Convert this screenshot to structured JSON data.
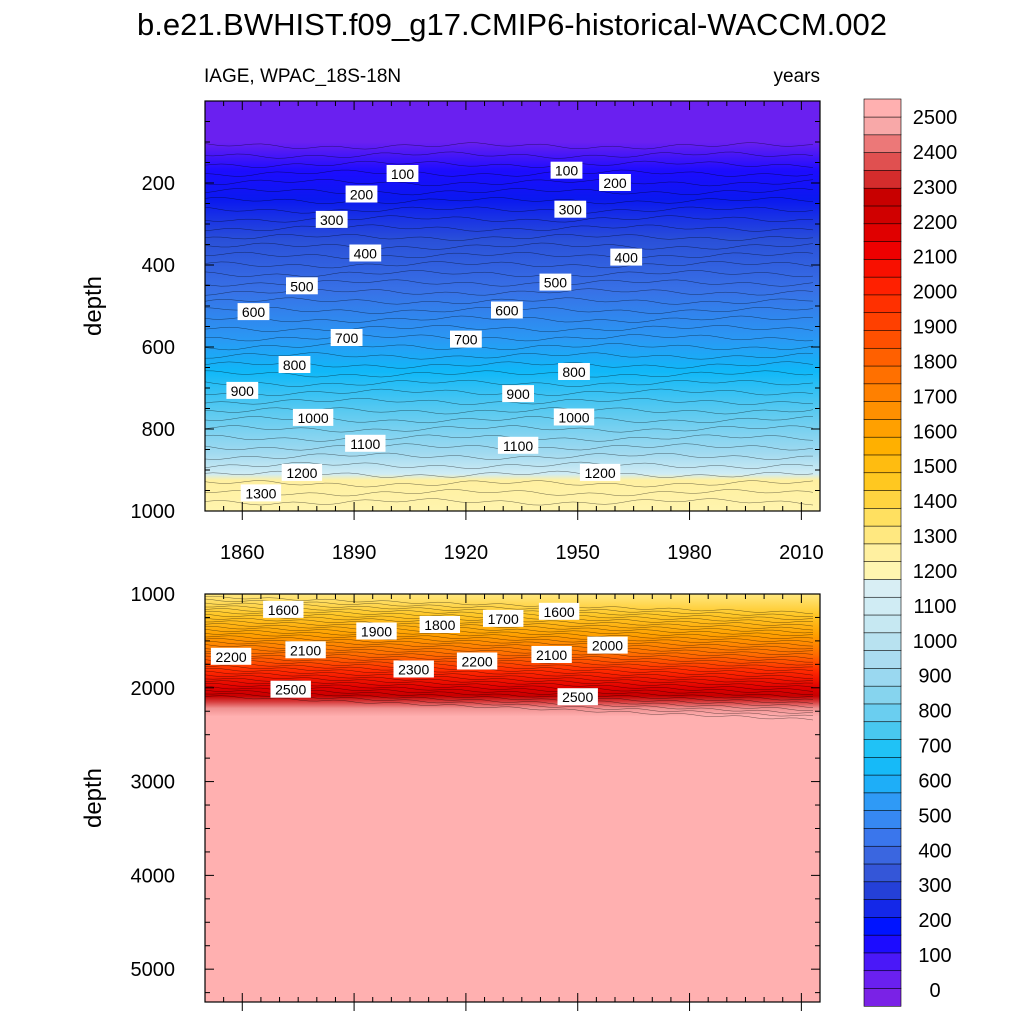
{
  "chart_data": {
    "type": "contour",
    "title": "b.e21.BWHIST.f09_g17.CMIP6-historical-WACCM.002",
    "variable_label": "IAGE, WPAC_18S-18N",
    "units_label": "years",
    "xlim": [
      1850,
      2015
    ],
    "x_ticks": [
      1860,
      1890,
      1920,
      1950,
      1980,
      2010
    ],
    "x_tick_labels": [
      "1860",
      "1890",
      "1920",
      "1950",
      "1980",
      "2010"
    ],
    "panels": [
      {
        "name": "upper",
        "ylabel": "depth",
        "ylim": [
          0,
          1000
        ],
        "y_ticks": [
          200,
          400,
          600,
          800,
          1000
        ],
        "y_tick_labels": [
          "200",
          "400",
          "600",
          "800",
          "1000"
        ],
        "contour_labels": [
          {
            "text": "100",
            "x": 1903,
            "y": 178
          },
          {
            "text": "100",
            "x": 1947,
            "y": 170
          },
          {
            "text": "200",
            "x": 1892,
            "y": 228
          },
          {
            "text": "200",
            "x": 1960,
            "y": 200
          },
          {
            "text": "300",
            "x": 1884,
            "y": 290
          },
          {
            "text": "300",
            "x": 1948,
            "y": 265
          },
          {
            "text": "400",
            "x": 1893,
            "y": 372
          },
          {
            "text": "400",
            "x": 1963,
            "y": 382
          },
          {
            "text": "500",
            "x": 1876,
            "y": 452
          },
          {
            "text": "500",
            "x": 1944,
            "y": 443
          },
          {
            "text": "600",
            "x": 1863,
            "y": 515
          },
          {
            "text": "600",
            "x": 1931,
            "y": 511
          },
          {
            "text": "700",
            "x": 1888,
            "y": 578
          },
          {
            "text": "700",
            "x": 1920,
            "y": 582
          },
          {
            "text": "800",
            "x": 1874,
            "y": 644
          },
          {
            "text": "800",
            "x": 1949,
            "y": 661
          },
          {
            "text": "900",
            "x": 1860,
            "y": 707
          },
          {
            "text": "900",
            "x": 1934,
            "y": 715
          },
          {
            "text": "1000",
            "x": 1879,
            "y": 773
          },
          {
            "text": "1000",
            "x": 1949,
            "y": 772
          },
          {
            "text": "1100",
            "x": 1893,
            "y": 836
          },
          {
            "text": "1100",
            "x": 1934,
            "y": 841
          },
          {
            "text": "1200",
            "x": 1876,
            "y": 907
          },
          {
            "text": "1200",
            "x": 1956,
            "y": 907
          },
          {
            "text": "1300",
            "x": 1865,
            "y": 957
          }
        ]
      },
      {
        "name": "lower",
        "ylabel": "depth",
        "ylim": [
          1000,
          5350
        ],
        "y_ticks": [
          1000,
          2000,
          3000,
          4000,
          5000
        ],
        "y_tick_labels": [
          "1000",
          "2000",
          "3000",
          "4000",
          "5000"
        ],
        "contour_labels": [
          {
            "text": "1600",
            "x": 1871,
            "y": 1170
          },
          {
            "text": "1600",
            "x": 1945,
            "y": 1190
          },
          {
            "text": "1700",
            "x": 1930,
            "y": 1265
          },
          {
            "text": "1800",
            "x": 1913,
            "y": 1330
          },
          {
            "text": "1900",
            "x": 1896,
            "y": 1400
          },
          {
            "text": "2000",
            "x": 1958,
            "y": 1550
          },
          {
            "text": "2100",
            "x": 1877,
            "y": 1600
          },
          {
            "text": "2100",
            "x": 1943,
            "y": 1650
          },
          {
            "text": "2200",
            "x": 1857,
            "y": 1670
          },
          {
            "text": "2200",
            "x": 1923,
            "y": 1720
          },
          {
            "text": "2300",
            "x": 1906,
            "y": 1805
          },
          {
            "text": "2500",
            "x": 1873,
            "y": 2020
          },
          {
            "text": "2500",
            "x": 1950,
            "y": 2100
          }
        ]
      }
    ],
    "colorbar": {
      "levels": [
        0,
        100,
        200,
        300,
        400,
        500,
        600,
        700,
        800,
        900,
        1000,
        1100,
        1200,
        1300,
        1400,
        1500,
        1600,
        1700,
        1800,
        1900,
        2000,
        2100,
        2200,
        2300,
        2400,
        2500
      ],
      "labels": [
        "0",
        "100",
        "200",
        "300",
        "400",
        "500",
        "600",
        "700",
        "800",
        "900",
        "1000",
        "1100",
        "1200",
        "1300",
        "1400",
        "1500",
        "1600",
        "1700",
        "1800",
        "1900",
        "2000",
        "2100",
        "2200",
        "2300",
        "2400",
        "2500"
      ],
      "colors": [
        "#7a22e6",
        "#6a20f0",
        "#4a18f8",
        "#1c0cff",
        "#0014ff",
        "#1428e8",
        "#2440d8",
        "#3456d8",
        "#3a66e0",
        "#3a76ec",
        "#3688f2",
        "#2f9af6",
        "#1eaef8",
        "#16baf8",
        "#20c2f6",
        "#48c8f0",
        "#6acef0",
        "#86d4ee",
        "#9ad8f0",
        "#aadcf0",
        "#b8e2f0",
        "#c6e8f2",
        "#d0ecf4",
        "#d8eef4",
        "#fff6b0",
        "#fff0a0",
        "#ffe880",
        "#ffe060",
        "#ffd440",
        "#ffc820",
        "#ffbc10",
        "#ffb000",
        "#ffa000",
        "#ff9000",
        "#ff8000",
        "#ff7000",
        "#ff6000",
        "#ff5000",
        "#ff4000",
        "#ff3000",
        "#ff2000",
        "#f81000",
        "#ee0000",
        "#e00000",
        "#d00000",
        "#c80000",
        "#d42c2c",
        "#e05050",
        "#ec7878",
        "#f8a8a8",
        "#ffb0b0"
      ]
    }
  }
}
